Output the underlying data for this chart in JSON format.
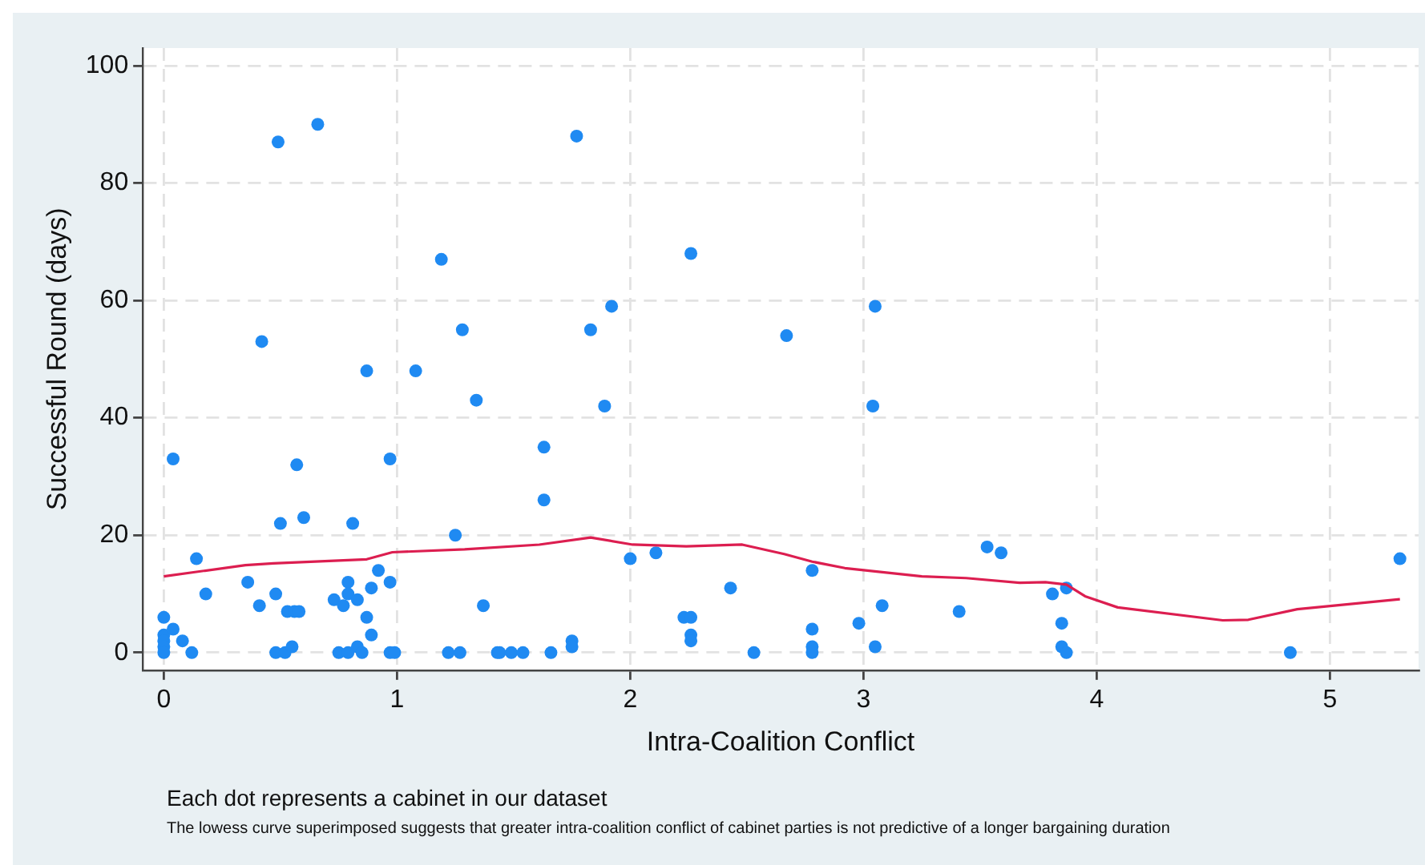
{
  "chart_data": {
    "type": "scatter",
    "xlabel": "Intra-Coalition Conflict",
    "ylabel": "Successful Round (days)",
    "xlim": [
      -0.09,
      5.38
    ],
    "xticks": [
      0,
      1,
      2,
      3,
      4,
      5
    ],
    "ylim": [
      -3,
      103
    ],
    "yticks": [
      0,
      20,
      40,
      60,
      80,
      100
    ],
    "grid": true,
    "legend": false,
    "marker": "circle",
    "annotations": [
      "Each dot represents a cabinet in our dataset",
      "The lowess curve superimposed suggests that greater intra-coalition conflict of cabinet parties is not predictive of a longer bargaining duration"
    ],
    "series": [
      {
        "color": "#1f8af2",
        "x": [
          0,
          0,
          0,
          0,
          0,
          0.04,
          0.04,
          0.08,
          0.12,
          0.14,
          0.18,
          0.36,
          0.42,
          0.41,
          0.49,
          0.66,
          0.5,
          0.48,
          0.57,
          0.6,
          0.53,
          0.56,
          0.58,
          0.48,
          0.52,
          0.55,
          0.73,
          0.77,
          0.79,
          0.79,
          0.83,
          0.81,
          0.87,
          0.87,
          0.89,
          0.89,
          0.92,
          0.97,
          0.97,
          0.75,
          0.79,
          0.83,
          0.85,
          0.97,
          0.99,
          1.08,
          1.19,
          1.22,
          1.25,
          1.28,
          1.27,
          1.34,
          1.37,
          1.43,
          1.44,
          1.49,
          1.54,
          1.63,
          1.63,
          1.66,
          1.75,
          1.75,
          1.77,
          1.83,
          1.92,
          1.89,
          2.0,
          2.11,
          2.26,
          2.23,
          2.26,
          2.26,
          2.26,
          2.43,
          2.53,
          2.67,
          2.78,
          2.78,
          2.78,
          2.78,
          3.05,
          3.04,
          2.98,
          3.08,
          3.05,
          3.41,
          3.53,
          3.59,
          3.81,
          3.87,
          3.85,
          3.85,
          3.87,
          4.83,
          5.3
        ],
        "values": [
          6,
          3,
          2,
          1,
          0,
          4,
          33,
          2,
          0,
          16,
          10,
          12,
          53,
          8,
          87,
          90,
          22,
          10,
          32,
          23,
          7,
          7,
          7,
          0,
          0,
          1,
          9,
          8,
          12,
          10,
          9,
          22,
          48,
          6,
          11,
          3,
          14,
          12,
          33,
          0,
          0,
          1,
          0,
          0,
          0,
          48,
          67,
          0,
          20,
          55,
          0,
          43,
          8,
          0,
          0,
          0,
          0,
          35,
          26,
          0,
          2,
          1,
          88,
          55,
          59,
          42,
          16,
          17,
          68,
          6,
          6,
          3,
          2,
          11,
          0,
          54,
          14,
          4,
          1,
          0,
          59,
          42,
          5,
          8,
          1,
          7,
          18,
          17,
          10,
          11,
          5,
          1,
          0,
          0,
          16
        ]
      },
      {
        "type": "line",
        "color": "#dc1e50",
        "marker": "none",
        "x": [
          0,
          0.35,
          0.47,
          0.87,
          0.98,
          1.29,
          1.61,
          1.83,
          2.01,
          2.24,
          2.48,
          2.66,
          2.78,
          2.92,
          3.25,
          3.44,
          3.67,
          3.78,
          3.87,
          3.95,
          4.09,
          4.54,
          4.65,
          4.86,
          5.3
        ],
        "values": [
          13,
          14.9,
          15.2,
          15.9,
          17.1,
          17.6,
          18.4,
          19.6,
          18.4,
          18.1,
          18.4,
          16.8,
          15.5,
          14.4,
          13,
          12.7,
          11.9,
          12,
          11.6,
          9.6,
          7.7,
          5.5,
          5.6,
          7.4,
          9.1
        ]
      }
    ]
  }
}
